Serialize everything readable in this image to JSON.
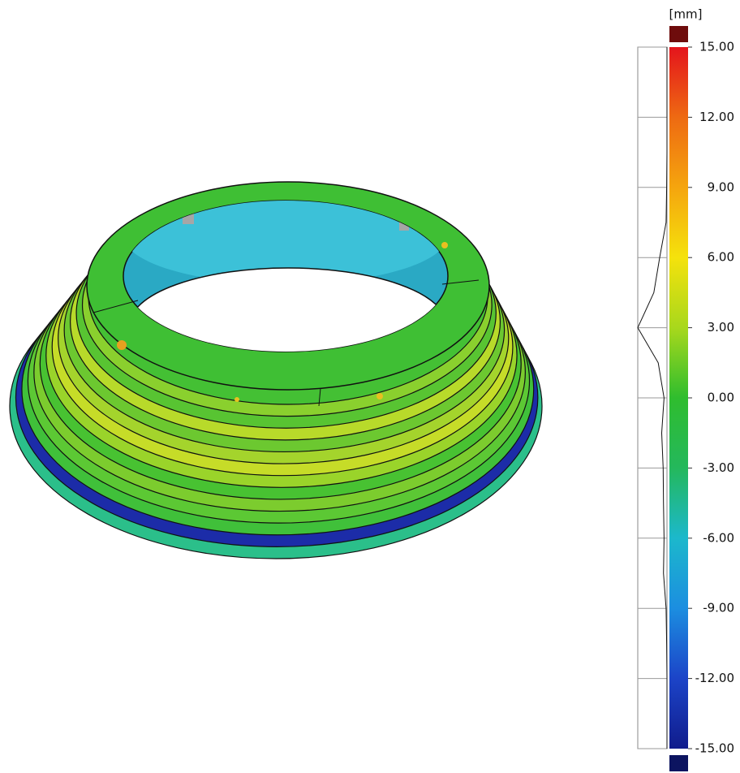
{
  "chart_data": {
    "type": "colorbar",
    "title": "[mm]",
    "ylim": [
      -15,
      15
    ],
    "yticks": [
      {
        "value": 15,
        "label": "15.00"
      },
      {
        "value": 12,
        "label": "12.00"
      },
      {
        "value": 9,
        "label": "9.00"
      },
      {
        "value": 6,
        "label": "6.00"
      },
      {
        "value": 3,
        "label": "3.00"
      },
      {
        "value": 0,
        "label": "0.00"
      },
      {
        "value": -3,
        "label": "-3.00"
      },
      {
        "value": -6,
        "label": "-6.00"
      },
      {
        "value": -9,
        "label": "-9.00"
      },
      {
        "value": -12,
        "label": "-12.00"
      },
      {
        "value": -15,
        "label": "-15.00"
      }
    ],
    "colors": [
      "#e4141c",
      "#ee6a12",
      "#f5a50e",
      "#f5e20c",
      "#a8d81c",
      "#2fbd2e",
      "#24b85c",
      "#1cb8cc",
      "#1c8ee0",
      "#1c44c8",
      "#101c8c"
    ],
    "over_color": "#6e0c0c",
    "under_color": "#0c1460",
    "histogram": {
      "x": [
        -15,
        -13.5,
        -12,
        -10.5,
        -9,
        -7.5,
        -6,
        -4.5,
        -3,
        -1.5,
        0,
        1.5,
        3,
        4.5,
        6,
        7.5,
        9,
        10.5,
        12,
        13.5,
        15
      ],
      "values": [
        0,
        0,
        0,
        0.01,
        0.03,
        0.12,
        0.1,
        0.12,
        0.13,
        0.18,
        0.1,
        0.3,
        1.0,
        0.45,
        0.25,
        0.03,
        0.01,
        0,
        0,
        0,
        0
      ],
      "xlim": [
        0,
        1
      ]
    }
  }
}
